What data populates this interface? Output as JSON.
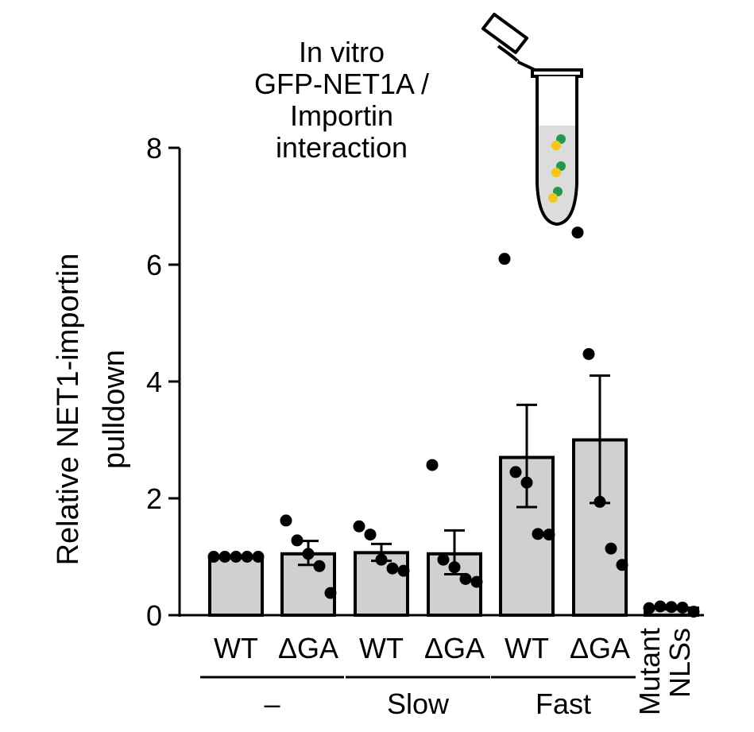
{
  "chart_data": {
    "type": "bar",
    "title": "In vitro\nGFP-NET1A /\nImportin\ninteraction",
    "ylabel": "Relative NET1-importin pulldown",
    "ylabel_lines": [
      "Relative NET1-importin",
      "pulldown"
    ],
    "xlabel": "",
    "ylim": [
      0,
      8
    ],
    "yticks": [
      0,
      2,
      4,
      6,
      8
    ],
    "categories": [
      "WT",
      "ΔGA",
      "WT",
      "ΔGA",
      "WT",
      "ΔGA",
      "Mutant NLSs"
    ],
    "category_lines": [
      [
        "WT"
      ],
      [
        "ΔGA"
      ],
      [
        "WT"
      ],
      [
        "ΔGA"
      ],
      [
        "WT"
      ],
      [
        "ΔGA"
      ],
      [
        "Mutant",
        "NLSs"
      ]
    ],
    "values": [
      1.0,
      1.05,
      1.07,
      1.05,
      2.7,
      3.0,
      0.12
    ],
    "error_low": [
      1.0,
      0.86,
      0.93,
      0.7,
      1.85,
      1.92,
      0.1
    ],
    "error_high": [
      1.0,
      1.27,
      1.22,
      1.45,
      3.6,
      4.1,
      0.14
    ],
    "points": [
      [
        1.0,
        1.0,
        1.0,
        1.0,
        1.0
      ],
      [
        1.62,
        1.28,
        1.05,
        0.84,
        0.38
      ],
      [
        1.52,
        1.38,
        0.95,
        0.8,
        0.76
      ],
      [
        2.57,
        0.95,
        0.82,
        0.62,
        0.57
      ],
      [
        6.1,
        2.45,
        2.27,
        1.39,
        1.38
      ],
      [
        6.55,
        4.47,
        1.94,
        1.14,
        0.86
      ],
      [
        0.12,
        0.15,
        0.14,
        0.13,
        0.06
      ]
    ],
    "groups": [
      {
        "label": "–",
        "members": [
          0,
          1
        ]
      },
      {
        "label": "Slow",
        "members": [
          2,
          3
        ]
      },
      {
        "label": "Fast",
        "members": [
          4,
          5
        ]
      }
    ],
    "bar_color": "#cfd0d2",
    "point_color": "#000000",
    "bead_colors": {
      "green": "#1f9a4a",
      "yellow": "#f5c518"
    },
    "tube_fill": "#dcdcdc",
    "icon": "microcentrifuge-tube-icon",
    "grid": false
  }
}
